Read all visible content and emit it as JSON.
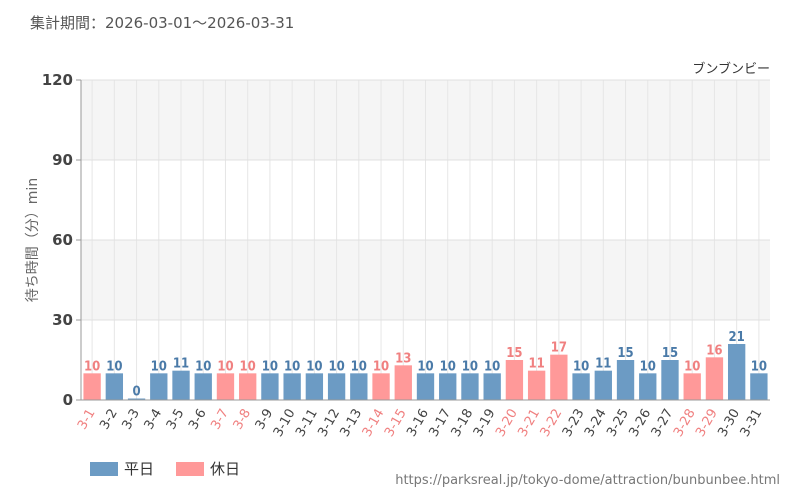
{
  "period_text": "集計期間：2026-03-01～2026-03-31",
  "source_text": "https://parksreal.jp/tokyo-dome/attraction/bunbunbee.html",
  "colors": {
    "weekday": "#6c9bc4",
    "holiday": "#ff9999",
    "weekday_text": "#4a7aa8",
    "holiday_text": "#f08080"
  },
  "legend": [
    {
      "label": "平日",
      "kind": "weekday"
    },
    {
      "label": "休日",
      "kind": "holiday"
    }
  ],
  "chart_data": {
    "type": "bar",
    "title": "",
    "series_name": "ブンブンビー",
    "ylabel": "待ち時間（分）min",
    "ylim": [
      0,
      120
    ],
    "yticks": [
      0,
      30,
      60,
      90,
      120
    ],
    "grid": true,
    "categories": [
      "3-1",
      "3-2",
      "3-3",
      "3-4",
      "3-5",
      "3-6",
      "3-7",
      "3-8",
      "3-9",
      "3-10",
      "3-11",
      "3-12",
      "3-13",
      "3-14",
      "3-15",
      "3-16",
      "3-17",
      "3-18",
      "3-19",
      "3-20",
      "3-21",
      "3-22",
      "3-23",
      "3-24",
      "3-25",
      "3-26",
      "3-27",
      "3-28",
      "3-29",
      "3-30",
      "3-31"
    ],
    "values": [
      10,
      10,
      0,
      10,
      11,
      10,
      10,
      10,
      10,
      10,
      10,
      10,
      10,
      10,
      13,
      10,
      10,
      10,
      10,
      15,
      11,
      17,
      10,
      11,
      15,
      10,
      15,
      10,
      16,
      21,
      10
    ],
    "day_type": [
      "holiday",
      "weekday",
      "weekday",
      "weekday",
      "weekday",
      "weekday",
      "holiday",
      "holiday",
      "weekday",
      "weekday",
      "weekday",
      "weekday",
      "weekday",
      "holiday",
      "holiday",
      "weekday",
      "weekday",
      "weekday",
      "weekday",
      "holiday",
      "holiday",
      "holiday",
      "weekday",
      "weekday",
      "weekday",
      "weekday",
      "weekday",
      "holiday",
      "holiday",
      "weekday",
      "weekday"
    ]
  }
}
